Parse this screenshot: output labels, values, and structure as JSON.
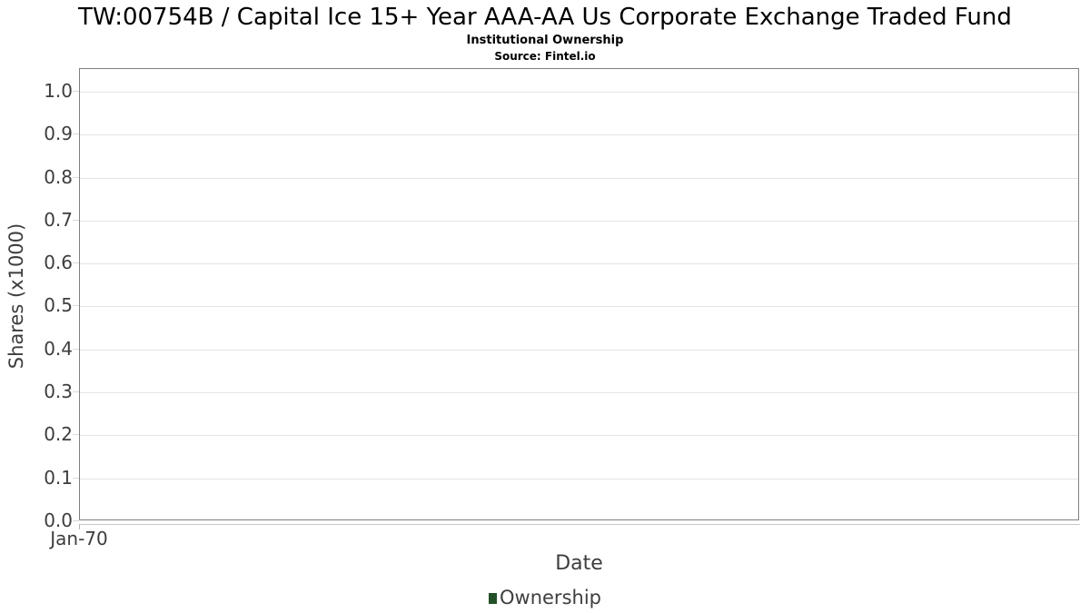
{
  "chart_data": {
    "type": "line",
    "title": "TW:00754B / Capital Ice 15+ Year AAA-AA Us Corporate Exchange Traded Fund",
    "subtitle": "Institutional Ownership",
    "source": "Source: Fintel.io",
    "xlabel": "Date",
    "ylabel": "Shares (x1000)",
    "x_ticks": [
      "Jan-70"
    ],
    "y_ticks": [
      "0.0",
      "0.1",
      "0.2",
      "0.3",
      "0.4",
      "0.5",
      "0.6",
      "0.7",
      "0.8",
      "0.9",
      "1.0"
    ],
    "ylim": [
      0.0,
      1.0527
    ],
    "grid": true,
    "legend_position": "bottom",
    "series": [
      {
        "name": "Ownership",
        "color": "#235028",
        "x": [],
        "values": []
      }
    ],
    "colors": {
      "plot_border": "#7f7f7f",
      "gridline": "#e4e4e4",
      "tick_text": "#3d3d3d"
    }
  }
}
